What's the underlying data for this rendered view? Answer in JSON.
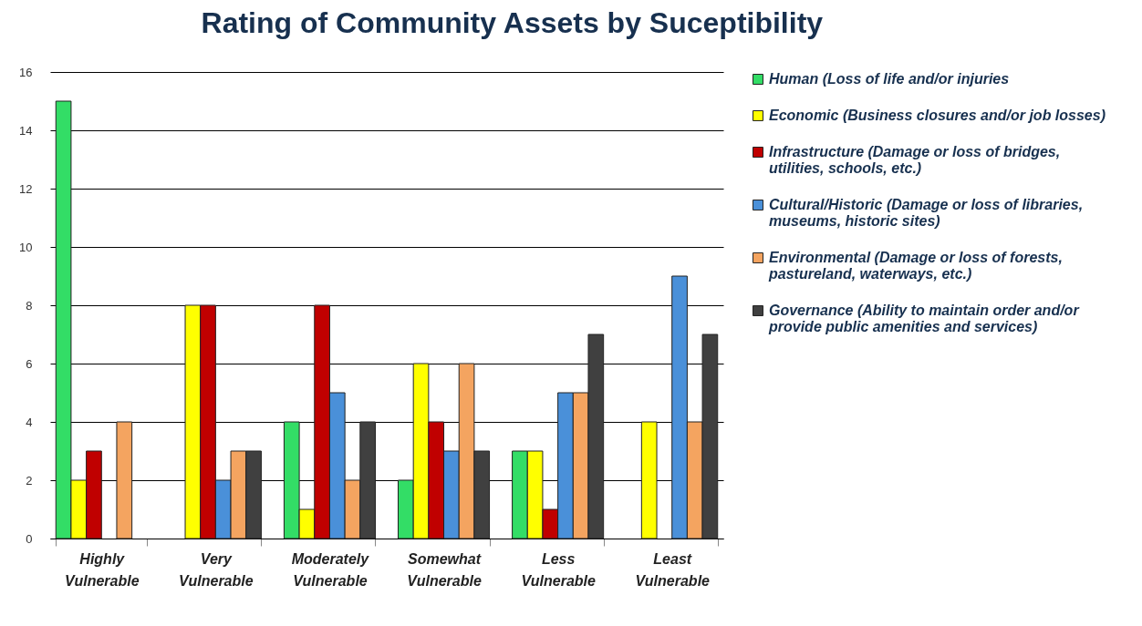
{
  "chart_data": {
    "type": "bar",
    "title": "Rating of Community Assets by Suceptibility",
    "categories": [
      "Highly Vulnerable",
      "Very Vulnerable",
      "Moderately Vulnerable",
      "Somewhat Vulnerable",
      "Less Vulnerable",
      "Least Vulnerable"
    ],
    "series": [
      {
        "name": "Human (Loss of life and/or injuries",
        "color": "#33dd66",
        "values": [
          15,
          null,
          4,
          2,
          3,
          null
        ]
      },
      {
        "name": "Economic (Business closures and/or job losses)",
        "color": "#ffff00",
        "values": [
          2,
          8,
          1,
          6,
          3,
          4
        ]
      },
      {
        "name": "Infrastructure (Damage or loss of bridges, utilities, schools, etc.)",
        "color": "#c00000",
        "values": [
          3,
          8,
          8,
          4,
          1,
          null
        ]
      },
      {
        "name": "Cultural/Historic (Damage or loss of libraries, museums, historic sites)",
        "color": "#4a90d9",
        "values": [
          null,
          2,
          5,
          3,
          5,
          9
        ]
      },
      {
        "name": "Environmental (Damage or loss of forests, pastureland, waterways, etc.)",
        "color": "#f4a460",
        "values": [
          4,
          3,
          2,
          6,
          5,
          4
        ]
      },
      {
        "name": "Governance (Ability to maintain order and/or provide public amenities and services)",
        "color": "#404040",
        "values": [
          null,
          3,
          4,
          3,
          7,
          7
        ]
      }
    ],
    "ylim": [
      0,
      16
    ],
    "yticks": [
      0,
      2,
      4,
      6,
      8,
      10,
      12,
      14,
      16
    ],
    "grid": "y",
    "legend": "right"
  }
}
